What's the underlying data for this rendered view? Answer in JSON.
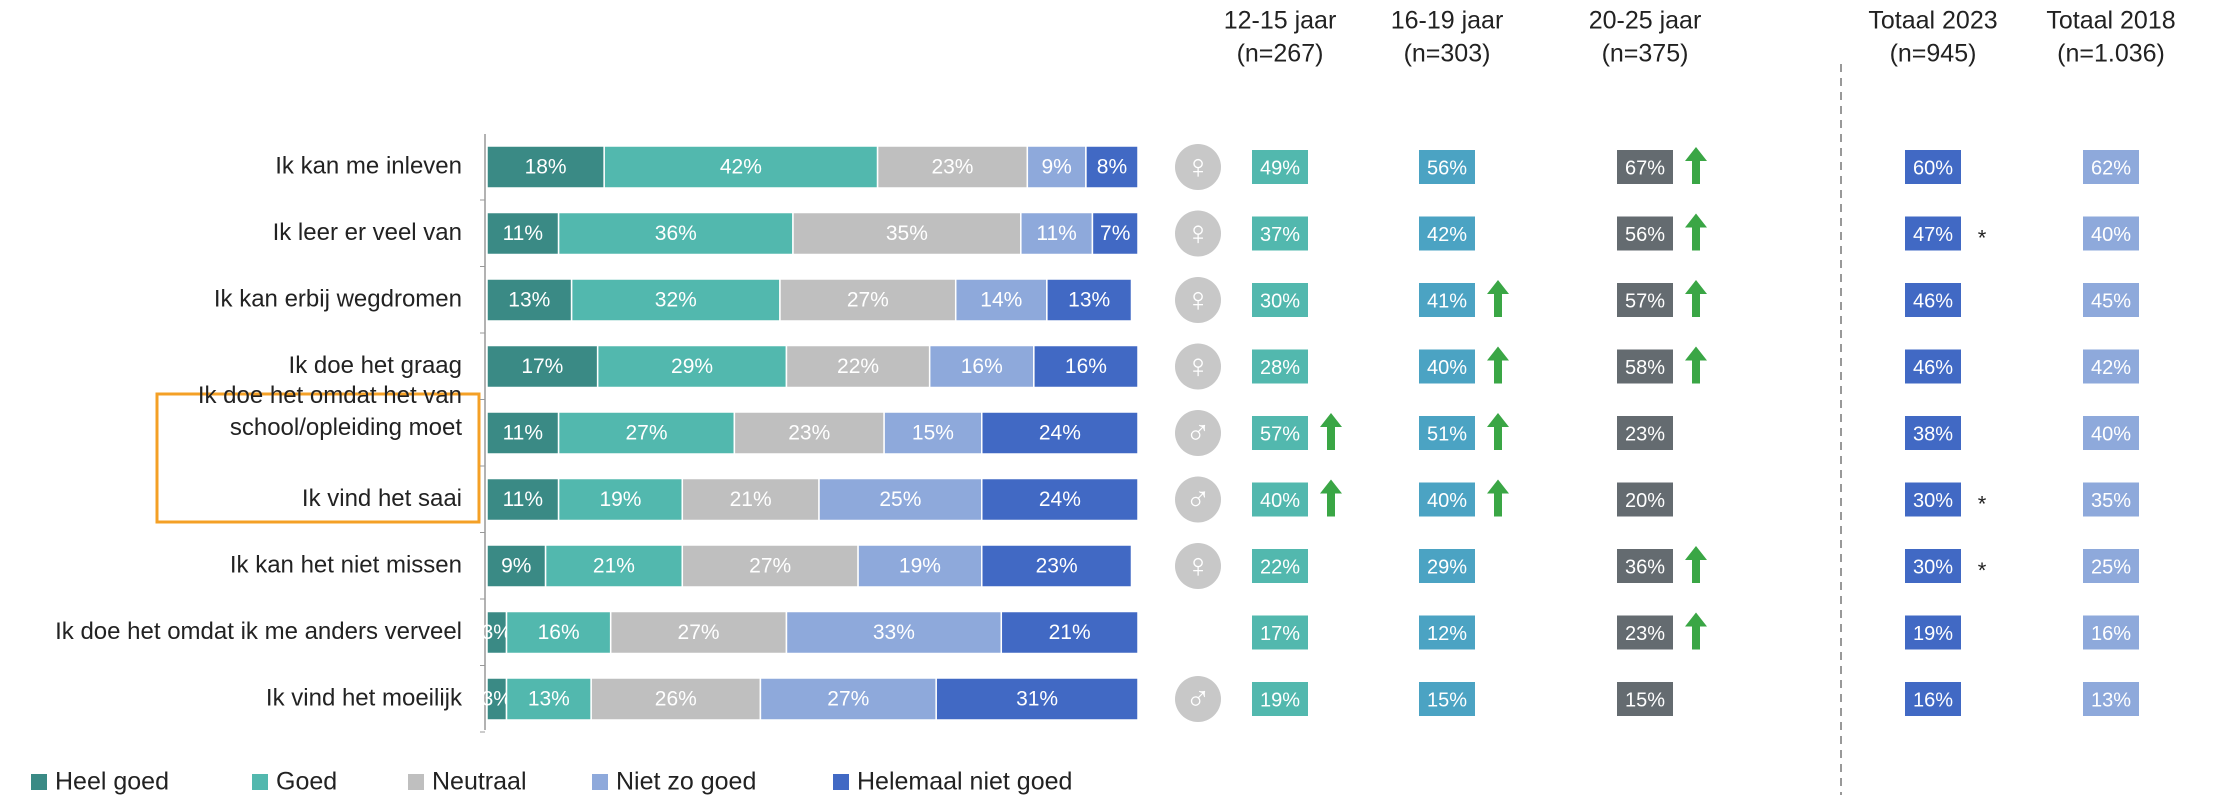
{
  "chart_data": {
    "type": "bar",
    "orientation": "horizontal",
    "stacked": true,
    "categories": [
      "Ik kan me inleven",
      "Ik leer er veel van",
      "Ik kan erbij wegdromen",
      "Ik doe het graag",
      "Ik doe het omdat het van school/opleiding moet",
      "Ik vind het saai",
      "Ik kan het niet missen",
      "Ik doe het omdat ik me anders verveel",
      "Ik vind het moeilijk"
    ],
    "xlim": [
      0,
      100
    ],
    "legend": "bottom",
    "series": [
      {
        "name": "Heel goed",
        "color": "#3a8a85",
        "values": [
          18,
          11,
          13,
          17,
          11,
          11,
          9,
          3,
          3
        ],
        "value_labels": [
          "18%",
          "11%",
          "13%",
          "17%",
          "11%",
          "11%",
          "9%",
          "3%",
          "3%"
        ]
      },
      {
        "name": "Goed",
        "color": "#52b8ae",
        "values": [
          42,
          36,
          32,
          29,
          27,
          19,
          21,
          16,
          13
        ],
        "value_labels": [
          "42%",
          "36%",
          "32%",
          "29%",
          "27%",
          "19%",
          "21%",
          "16%",
          "13%"
        ]
      },
      {
        "name": "Neutraal",
        "color": "#bfbfbf",
        "values": [
          23,
          35,
          27,
          22,
          23,
          21,
          27,
          27,
          26
        ],
        "value_labels": [
          "23%",
          "35%",
          "27%",
          "22%",
          "23%",
          "21%",
          "27%",
          "27%",
          "26%"
        ]
      },
      {
        "name": "Niet zo goed",
        "color": "#8ea9db",
        "values": [
          9,
          11,
          14,
          16,
          15,
          25,
          19,
          33,
          27
        ],
        "value_labels": [
          "9%",
          "11%",
          "14%",
          "16%",
          "15%",
          "25%",
          "19%",
          "33%",
          "27%"
        ]
      },
      {
        "name": "Helemaal niet goed",
        "color": "#4169c4",
        "values": [
          8,
          7,
          13,
          16,
          24,
          24,
          23,
          21,
          31
        ],
        "value_labels": [
          "8%",
          "7%",
          "13%",
          "16%",
          "24%",
          "24%",
          "23%",
          "21%",
          "31%"
        ]
      }
    ]
  },
  "table": {
    "gender": [
      "♀",
      "♀",
      "♀",
      "♀",
      "♂",
      "♂",
      "♀",
      null,
      "♂"
    ],
    "columns": [
      {
        "header": [
          "12-15 jaar",
          "(n=267)"
        ],
        "color": "#52b8ae",
        "cells": [
          "49%",
          "37%",
          "30%",
          "28%",
          "57%",
          "40%",
          "22%",
          "17%",
          "19%"
        ],
        "up": [
          false,
          false,
          false,
          false,
          true,
          true,
          false,
          false,
          false
        ]
      },
      {
        "header": [
          "16-19 jaar",
          "(n=303)"
        ],
        "color": "#4ba3c3",
        "cells": [
          "56%",
          "42%",
          "41%",
          "40%",
          "51%",
          "40%",
          "29%",
          "12%",
          "15%"
        ],
        "up": [
          false,
          false,
          true,
          true,
          true,
          true,
          false,
          false,
          false
        ]
      },
      {
        "header": [
          "20-25 jaar",
          "(n=375)"
        ],
        "color": "#646b70",
        "cells": [
          "67%",
          "56%",
          "57%",
          "58%",
          "23%",
          "20%",
          "36%",
          "23%",
          "15%"
        ],
        "up": [
          true,
          true,
          true,
          true,
          false,
          false,
          true,
          true,
          false
        ]
      },
      {
        "header": [
          "Totaal 2023",
          "(n=945)"
        ],
        "color": "#4169c4",
        "cells": [
          "60%",
          "47%",
          "46%",
          "46%",
          "38%",
          "30%",
          "30%",
          "19%",
          "16%"
        ],
        "notes": [
          null,
          "*",
          null,
          null,
          null,
          "*",
          "*",
          null,
          null
        ]
      },
      {
        "header": [
          "Totaal 2018",
          "(n=1.036)"
        ],
        "color": "#8ea9db",
        "cells": [
          "62%",
          "40%",
          "45%",
          "42%",
          "40%",
          "35%",
          "25%",
          "16%",
          "13%"
        ]
      }
    ]
  }
}
